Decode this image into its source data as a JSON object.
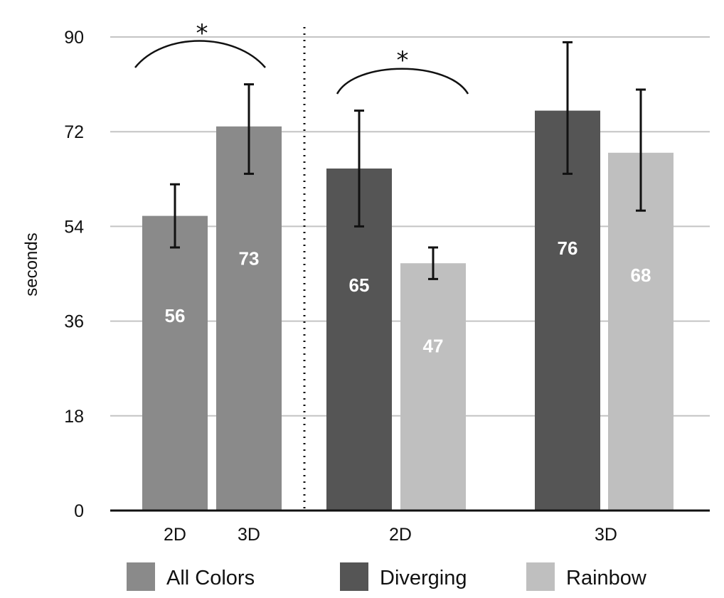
{
  "chart_data": {
    "type": "bar",
    "ylabel": "seconds",
    "ylim": [
      0,
      90
    ],
    "yticks": [
      0,
      18,
      36,
      54,
      72,
      90
    ],
    "grid": true,
    "legend_placement": "bottom",
    "colors": {
      "All Colors": "#8a8a8a",
      "Diverging": "#555555",
      "Rainbow": "#bfbfbf"
    },
    "x_labels": [
      "2D",
      "3D",
      "2D",
      "3D"
    ],
    "bars": [
      {
        "series": "All Colors",
        "x": "2D",
        "value": 56,
        "label": "56",
        "err_low": 50,
        "err_high": 62
      },
      {
        "series": "All Colors",
        "x": "3D",
        "value": 73,
        "label": "73",
        "err_low": 64,
        "err_high": 81
      },
      {
        "series": "Diverging",
        "x": "2D",
        "value": 65,
        "label": "65",
        "err_low": 54,
        "err_high": 76
      },
      {
        "series": "Rainbow",
        "x": "2D",
        "value": 47,
        "label": "47",
        "err_low": 44,
        "err_high": 50
      },
      {
        "series": "Diverging",
        "x": "3D",
        "value": 76,
        "label": "76",
        "err_low": 64,
        "err_high": 89
      },
      {
        "series": "Rainbow",
        "x": "3D",
        "value": 68,
        "label": "68",
        "err_low": 57,
        "err_high": 80
      }
    ],
    "legend": [
      "All Colors",
      "Diverging",
      "Rainbow"
    ],
    "annotations": [
      "*",
      "*"
    ]
  }
}
